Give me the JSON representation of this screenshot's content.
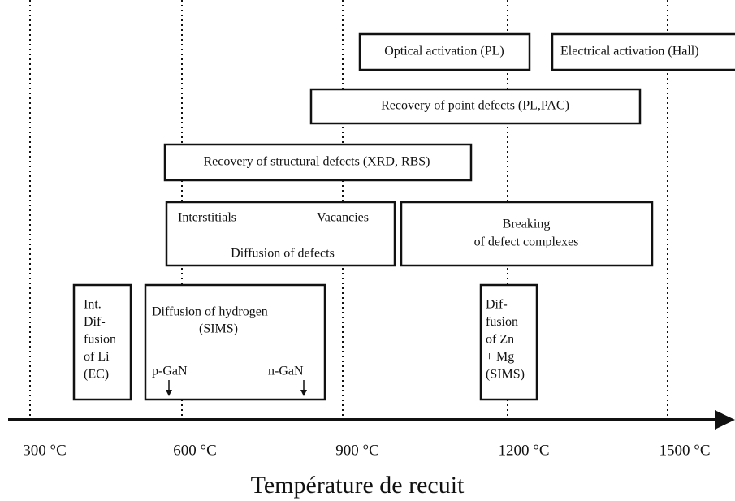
{
  "axis": {
    "ticks": [
      "300 °C",
      "600 °C",
      "900 °C",
      "1200 °C",
      "1500 °C"
    ],
    "title": "Température de recuit"
  },
  "boxes": [
    {
      "lines": [
        "Optical activation (PL)"
      ]
    },
    {
      "lines": [
        "Electrical activation (Hall)"
      ]
    },
    {
      "lines": [
        "Recovery of point defects (PL,PAC)"
      ]
    },
    {
      "lines": [
        "Recovery of structural defects (XRD, RBS)"
      ]
    },
    {
      "lines": [
        "Interstitials",
        "Vacancies",
        "Diffusion of defects"
      ]
    },
    {
      "lines": [
        "Breaking",
        "of defect complexes"
      ]
    },
    {
      "lines": [
        "Int.",
        "Dif-",
        "fusion",
        "of Li",
        "(EC)"
      ]
    },
    {
      "lines": [
        "Diffusion of hydrogen",
        "(SIMS)",
        "p-GaN",
        "n-GaN"
      ]
    },
    {
      "lines": [
        "Dif-",
        "fusion",
        "of Zn",
        "+ Mg",
        "(SIMS)"
      ]
    }
  ]
}
